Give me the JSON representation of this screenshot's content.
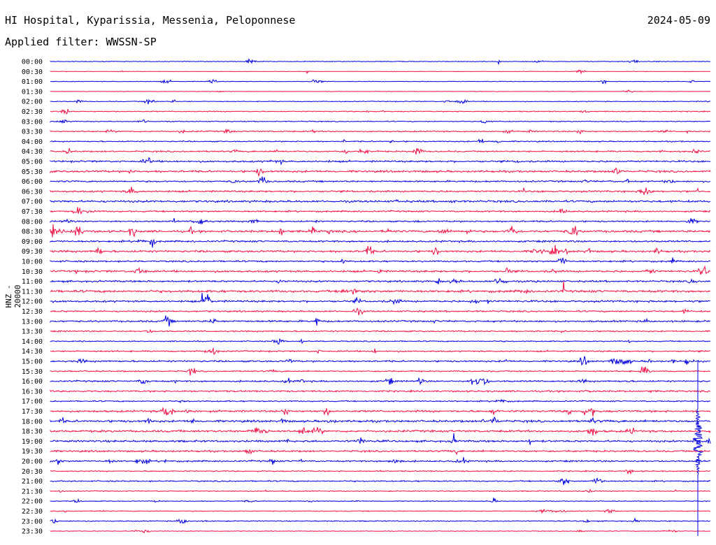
{
  "header": {
    "station": "HI Hospital, Kyparissia, Messenia, Peloponnese",
    "date": "2024-05-09",
    "filter": "Applied filter: WWSSN-SP"
  },
  "channel_label": "HNZ - 20000",
  "colors": {
    "even_trace": "#0000dd",
    "odd_trace": "#ee1144",
    "background": "#ffffff"
  },
  "time_labels": [
    "00:00",
    "00:30",
    "01:00",
    "01:30",
    "02:00",
    "02:30",
    "03:00",
    "03:30",
    "04:00",
    "04:30",
    "05:00",
    "05:30",
    "06:00",
    "06:30",
    "07:00",
    "07:30",
    "08:00",
    "08:30",
    "09:00",
    "09:30",
    "10:00",
    "10:30",
    "11:00",
    "11:30",
    "12:00",
    "12:30",
    "13:00",
    "13:30",
    "14:00",
    "14:30",
    "15:00",
    "15:30",
    "16:00",
    "16:30",
    "17:00",
    "17:30",
    "18:00",
    "18:30",
    "19:00",
    "19:30",
    "20:00",
    "20:30",
    "21:00",
    "21:30",
    "22:00",
    "22:30",
    "23:00",
    "23:30"
  ],
  "noise_levels": [
    0.4,
    0.3,
    0.4,
    0.3,
    0.5,
    0.6,
    0.6,
    0.8,
    0.7,
    0.9,
    1.1,
    1.2,
    1.0,
    1.1,
    1.3,
    1.0,
    0.9,
    1.3,
    1.1,
    1.2,
    1.0,
    1.2,
    1.1,
    1.4,
    1.2,
    1.0,
    1.1,
    0.8,
    0.7,
    0.9,
    1.0,
    0.8,
    1.0,
    1.0,
    0.8,
    1.2,
    1.3,
    1.3,
    1.2,
    1.1,
    1.0,
    0.7,
    0.8,
    0.6,
    0.5,
    0.5,
    0.6,
    0.4
  ]
}
